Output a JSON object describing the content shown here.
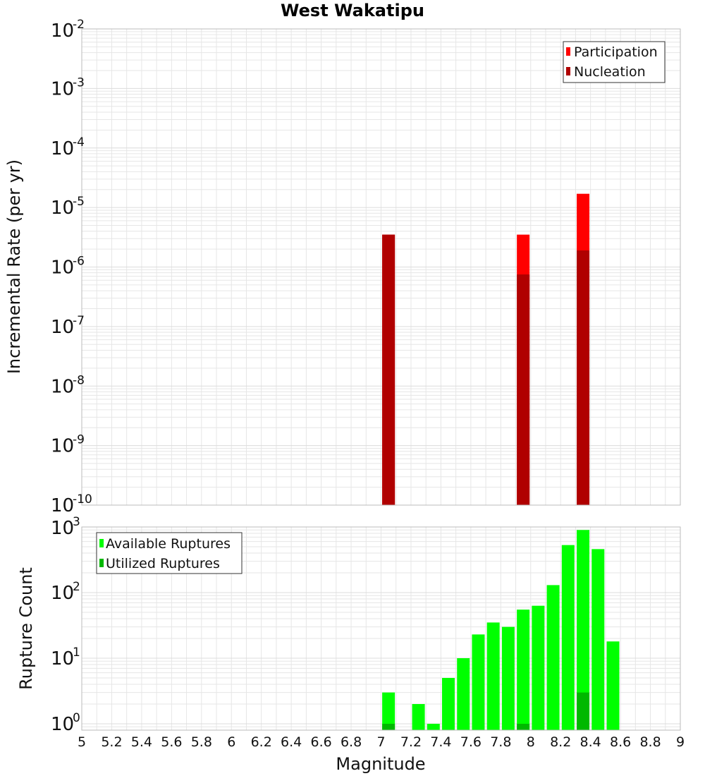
{
  "title": "West Wakatipu",
  "colors": {
    "participation": "#ff0000",
    "nucleation": "#b00000",
    "available": "#00ff00",
    "utilized": "#00b800",
    "grid": "#e6e6e6",
    "frame": "#bbbbbb"
  },
  "chart_data": [
    {
      "type": "bar",
      "ylabel": "Incremental Rate (per yr)",
      "yscale": "log",
      "ylim": [
        1e-10,
        0.01
      ],
      "xlim": [
        5,
        9
      ],
      "grid": true,
      "legend_position": "top-right",
      "series": [
        {
          "name": "Participation",
          "color": "#ff0000",
          "x": [
            7.05,
            7.95,
            8.35
          ],
          "values": [
            3.5e-06,
            3.5e-06,
            1.7e-05
          ]
        },
        {
          "name": "Nucleation",
          "color": "#b00000",
          "x": [
            7.05,
            7.95,
            8.35
          ],
          "values": [
            3.5e-06,
            7.5e-07,
            1.9e-06
          ]
        }
      ]
    },
    {
      "type": "bar",
      "ylabel": "Rupture Count",
      "xlabel": "Magnitude",
      "yscale": "log",
      "ylim": [
        0.8,
        1000
      ],
      "xlim": [
        5,
        9
      ],
      "grid": true,
      "legend_position": "top-left",
      "xticks": [
        "5",
        "5.2",
        "5.4",
        "5.6",
        "5.8",
        "6",
        "6.2",
        "6.4",
        "6.6",
        "6.8",
        "7",
        "7.2",
        "7.4",
        "7.6",
        "7.8",
        "8",
        "8.2",
        "8.4",
        "8.6",
        "8.8",
        "9"
      ],
      "series": [
        {
          "name": "Available Ruptures",
          "color": "#00ff00",
          "x": [
            7.05,
            7.25,
            7.35,
            7.45,
            7.55,
            7.65,
            7.75,
            7.85,
            7.95,
            8.05,
            8.15,
            8.25,
            8.35,
            8.45,
            8.55
          ],
          "values": [
            3,
            2,
            1,
            5,
            10,
            23,
            35,
            30,
            55,
            63,
            130,
            530,
            900,
            460,
            18
          ]
        },
        {
          "name": "Utilized Ruptures",
          "color": "#00b800",
          "x": [
            7.05,
            7.95,
            8.35
          ],
          "values": [
            1,
            1,
            3
          ]
        }
      ]
    }
  ]
}
